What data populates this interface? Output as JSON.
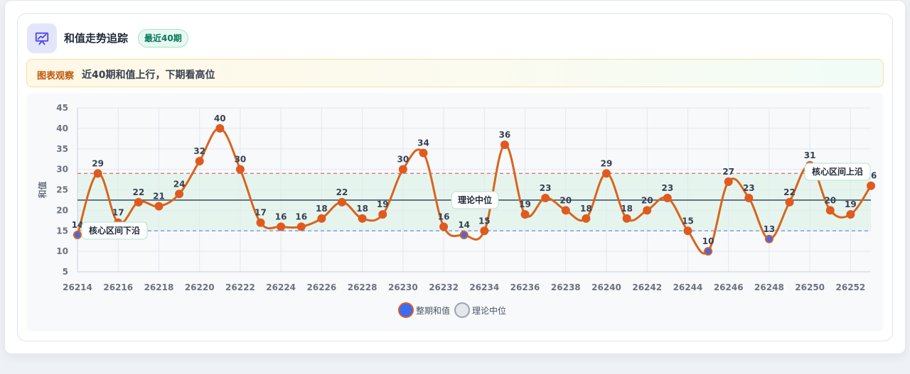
{
  "header": {
    "title": "和值走势追踪",
    "badge": "最近40期",
    "icon": "trend-chart-icon"
  },
  "insight": {
    "tag": "图表观察",
    "text": "近40期和值上行，下期看高位"
  },
  "legend": {
    "main": "整期和值",
    "median": "理论中位"
  },
  "colors": {
    "line": "#d9641c",
    "point": "#e05a1f",
    "band": "#dff3ea",
    "upper_line": "#e06a6a",
    "lower_line": "#6b8fe0",
    "median_line": "#475569",
    "accent": "#4f46e5"
  },
  "chart_data": {
    "type": "line",
    "x": [
      26214,
      26215,
      26216,
      26217,
      26218,
      26219,
      26220,
      26221,
      26222,
      26223,
      26224,
      26225,
      26226,
      26227,
      26228,
      26229,
      26230,
      26231,
      26232,
      26233,
      26234,
      26235,
      26236,
      26237,
      26238,
      26239,
      26240,
      26241,
      26242,
      26243,
      26244,
      26245,
      26246,
      26247,
      26248,
      26249,
      26250,
      26251,
      26252,
      26253
    ],
    "series": [
      {
        "name": "整期和值",
        "values": [
          14,
          29,
          17,
          22,
          21,
          24,
          32,
          40,
          30,
          17,
          16,
          16,
          18,
          22,
          18,
          19,
          30,
          34,
          16,
          14,
          15,
          36,
          19,
          23,
          20,
          18,
          29,
          18,
          20,
          23,
          15,
          10,
          27,
          23,
          13,
          22,
          31,
          20,
          19,
          26
        ]
      }
    ],
    "x_ticks": [
      "26214",
      "26216",
      "26218",
      "26220",
      "26222",
      "26224",
      "26226",
      "26228",
      "26230",
      "26232",
      "26234",
      "26236",
      "26238",
      "26240",
      "26242",
      "26244",
      "26246",
      "26248",
      "26250",
      "26252"
    ],
    "ylabel": "和值",
    "ylim": [
      5,
      45
    ],
    "y_ticks": [
      "5",
      "10",
      "15",
      "20",
      "25",
      "30",
      "35",
      "40",
      "45"
    ],
    "band": {
      "lower": 15,
      "upper": 29
    },
    "median": 22.5,
    "annotations": {
      "lower": "核心区间下沿",
      "median": "理论中位",
      "upper": "核心区间上沿"
    },
    "grid": true
  }
}
